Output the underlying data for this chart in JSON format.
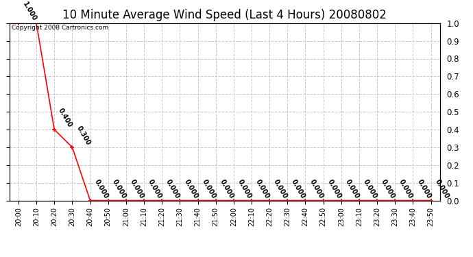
{
  "title": "10 Minute Average Wind Speed (Last 4 Hours) 20080802",
  "copyright": "Copyright 2008 Cartronics.com",
  "x_labels": [
    "20:00",
    "20:10",
    "20:20",
    "20:30",
    "20:40",
    "20:50",
    "21:00",
    "21:10",
    "21:20",
    "21:30",
    "21:40",
    "21:50",
    "22:00",
    "22:10",
    "22:20",
    "22:30",
    "22:40",
    "22:50",
    "23:00",
    "23:10",
    "23:20",
    "23:30",
    "23:40",
    "23:50"
  ],
  "y_values": [
    1.0,
    1.0,
    0.4,
    0.3,
    0.0,
    0.0,
    0.0,
    0.0,
    0.0,
    0.0,
    0.0,
    0.0,
    0.0,
    0.0,
    0.0,
    0.0,
    0.0,
    0.0,
    0.0,
    0.0,
    0.0,
    0.0,
    0.0,
    0.0
  ],
  "annotate_indices": [
    0,
    2,
    3,
    4,
    5,
    6,
    7,
    8,
    9,
    10,
    11,
    12,
    13,
    14,
    15,
    16,
    17,
    18,
    19,
    20,
    21,
    22,
    23
  ],
  "ylim": [
    0.0,
    1.0
  ],
  "y_right_ticks": [
    0.0,
    0.1,
    0.2,
    0.3,
    0.4,
    0.5,
    0.6,
    0.7,
    0.8,
    0.9,
    1.0
  ],
  "line_color": "#ff0000",
  "marker": "+",
  "marker_color": "#ff0000",
  "bg_color": "#ffffff",
  "grid_color": "#c8c8c8",
  "title_fontsize": 12,
  "annotation_fontsize": 7,
  "annotation_rotation": -60
}
